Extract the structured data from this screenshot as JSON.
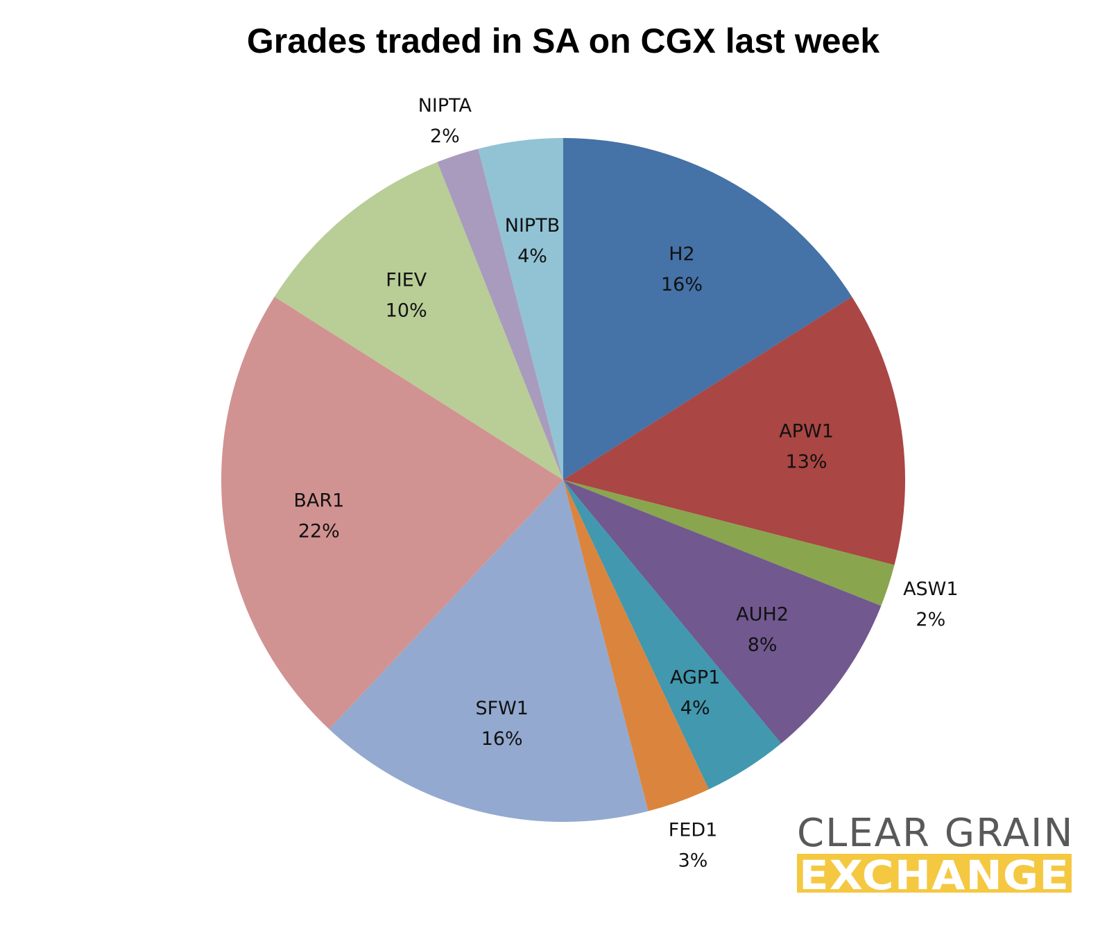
{
  "chart_data": {
    "type": "pie",
    "title": "Grades traded in SA on CGX last week",
    "start_angle": "12 o'clock",
    "direction": "clockwise",
    "slices": [
      {
        "label": "H2",
        "value": 16,
        "display": "16%",
        "color": "#4572A7"
      },
      {
        "label": "APW1",
        "value": 13,
        "display": "13%",
        "color": "#AA4643"
      },
      {
        "label": "ASW1",
        "value": 2,
        "display": "2%",
        "color": "#89A54E"
      },
      {
        "label": "AUH2",
        "value": 8,
        "display": "8%",
        "color": "#71588F"
      },
      {
        "label": "AGP1",
        "value": 4,
        "display": "4%",
        "color": "#4198AF"
      },
      {
        "label": "FED1",
        "value": 3,
        "display": "3%",
        "color": "#DB843D"
      },
      {
        "label": "SFW1",
        "value": 16,
        "display": "16%",
        "color": "#93A9CF"
      },
      {
        "label": "BAR1",
        "value": 22,
        "display": "22%",
        "color": "#D19392"
      },
      {
        "label": "FIEV",
        "value": 10,
        "display": "10%",
        "color": "#B9CD96"
      },
      {
        "label": "NIPTA",
        "value": 2,
        "display": "2%",
        "color": "#A99BBD"
      },
      {
        "label": "NIPTB",
        "value": 4,
        "display": "4%",
        "color": "#91C3D5"
      }
    ]
  },
  "logo": {
    "line1": "CLEAR GRAIN",
    "line2": "EXCHANGE",
    "line1_color": "#595959",
    "line2_bg_color": "#F5C842"
  }
}
